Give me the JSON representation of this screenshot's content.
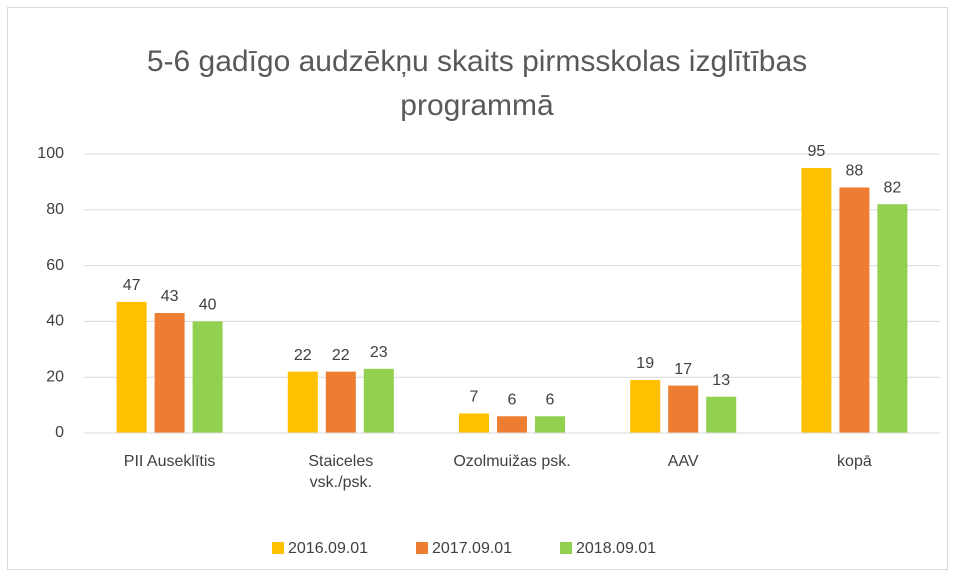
{
  "chart_data": {
    "type": "bar",
    "title": "5-6 gadīgo audzēkņu skaits pirmsskolas izglītības programmā",
    "categories": [
      "PII Auseklītis",
      "Staiceles vsk./psk.",
      "Ozolmuižas psk.",
      "AAV",
      "kopā"
    ],
    "series": [
      {
        "name": "2016.09.01",
        "color": "#FFC000",
        "values": [
          47,
          22,
          7,
          19,
          95
        ]
      },
      {
        "name": "2017.09.01",
        "color": "#ED7D31",
        "values": [
          43,
          22,
          6,
          17,
          88
        ]
      },
      {
        "name": "2018.09.01",
        "color": "#92D050",
        "values": [
          40,
          23,
          6,
          13,
          82
        ]
      }
    ],
    "ylim": [
      0,
      100
    ],
    "yticks": [
      0,
      20,
      40,
      60,
      80,
      100
    ],
    "grid": true,
    "legend": "bottom"
  }
}
